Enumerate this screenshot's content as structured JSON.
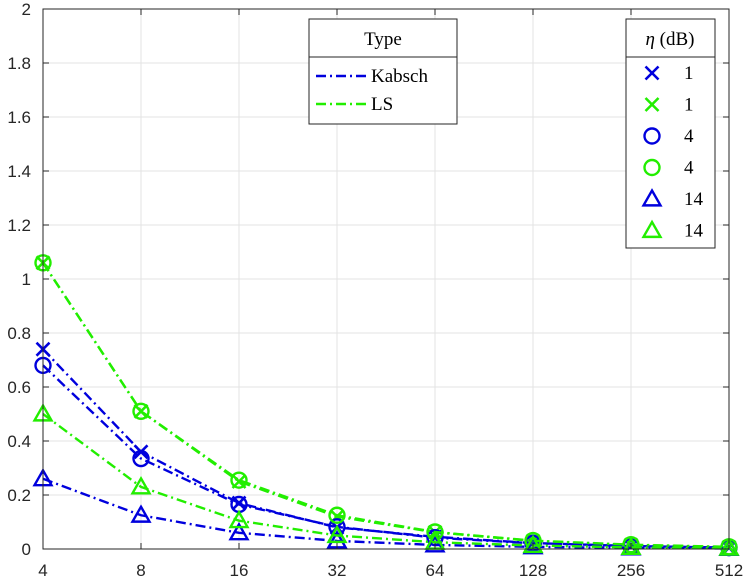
{
  "chart_data": {
    "type": "line",
    "title": "",
    "xlabel": "",
    "ylabel": "",
    "x_scale": "log2",
    "x": [
      4,
      8,
      16,
      32,
      64,
      128,
      256,
      512
    ],
    "x_tick_labels": [
      "4",
      "8",
      "16",
      "32",
      "64",
      "128",
      "256",
      "512"
    ],
    "xlim": [
      4,
      512
    ],
    "ylim": [
      0,
      2
    ],
    "y_ticks": [
      0,
      0.2,
      0.4,
      0.6,
      0.8,
      1,
      1.2,
      1.4,
      1.6,
      1.8,
      2
    ],
    "y_tick_labels": [
      "0",
      "0.2",
      "0.4",
      "0.6",
      "0.8",
      "1",
      "1.2",
      "1.4",
      "1.6",
      "1.8",
      "2"
    ],
    "grid": true,
    "colors": {
      "Kabsch": "#0000dd",
      "LS": "#22ee00"
    },
    "type_legend": {
      "title": "Type",
      "placement": "top-center",
      "entries": [
        {
          "label": "Kabsch",
          "color": "#0000dd"
        },
        {
          "label": "LS",
          "color": "#22ee00"
        }
      ]
    },
    "eta_legend": {
      "title_symbol": "η",
      "title_unit": " (dB)",
      "placement": "top-right",
      "entries": [
        {
          "label": "1",
          "marker": "x",
          "color": "#0000dd"
        },
        {
          "label": "1",
          "marker": "x",
          "color": "#22ee00"
        },
        {
          "label": "4",
          "marker": "circle",
          "color": "#0000dd"
        },
        {
          "label": "4",
          "marker": "circle",
          "color": "#22ee00"
        },
        {
          "label": "14",
          "marker": "triangle",
          "color": "#0000dd"
        },
        {
          "label": "14",
          "marker": "triangle",
          "color": "#22ee00"
        }
      ]
    },
    "series": [
      {
        "type": "Kabsch",
        "eta": "1",
        "marker": "x",
        "color": "#0000dd",
        "values": [
          0.74,
          0.36,
          0.17,
          0.08,
          0.045,
          0.022,
          0.011,
          0.005
        ]
      },
      {
        "type": "LS",
        "eta": "1",
        "marker": "x",
        "color": "#22ee00",
        "values": [
          1.06,
          0.51,
          0.25,
          0.12,
          0.062,
          0.03,
          0.015,
          0.007
        ]
      },
      {
        "type": "Kabsch",
        "eta": "4",
        "marker": "circle",
        "color": "#0000dd",
        "values": [
          0.68,
          0.335,
          0.165,
          0.082,
          0.042,
          0.021,
          0.01,
          0.005
        ]
      },
      {
        "type": "LS",
        "eta": "4",
        "marker": "circle",
        "color": "#22ee00",
        "values": [
          1.06,
          0.51,
          0.255,
          0.125,
          0.063,
          0.031,
          0.016,
          0.008
        ]
      },
      {
        "type": "Kabsch",
        "eta": "14",
        "marker": "triangle",
        "color": "#0000dd",
        "values": [
          0.26,
          0.125,
          0.06,
          0.03,
          0.015,
          0.008,
          0.004,
          0.002
        ]
      },
      {
        "type": "LS",
        "eta": "14",
        "marker": "triangle",
        "color": "#22ee00",
        "values": [
          0.5,
          0.23,
          0.105,
          0.05,
          0.025,
          0.013,
          0.006,
          0.003
        ]
      }
    ]
  }
}
